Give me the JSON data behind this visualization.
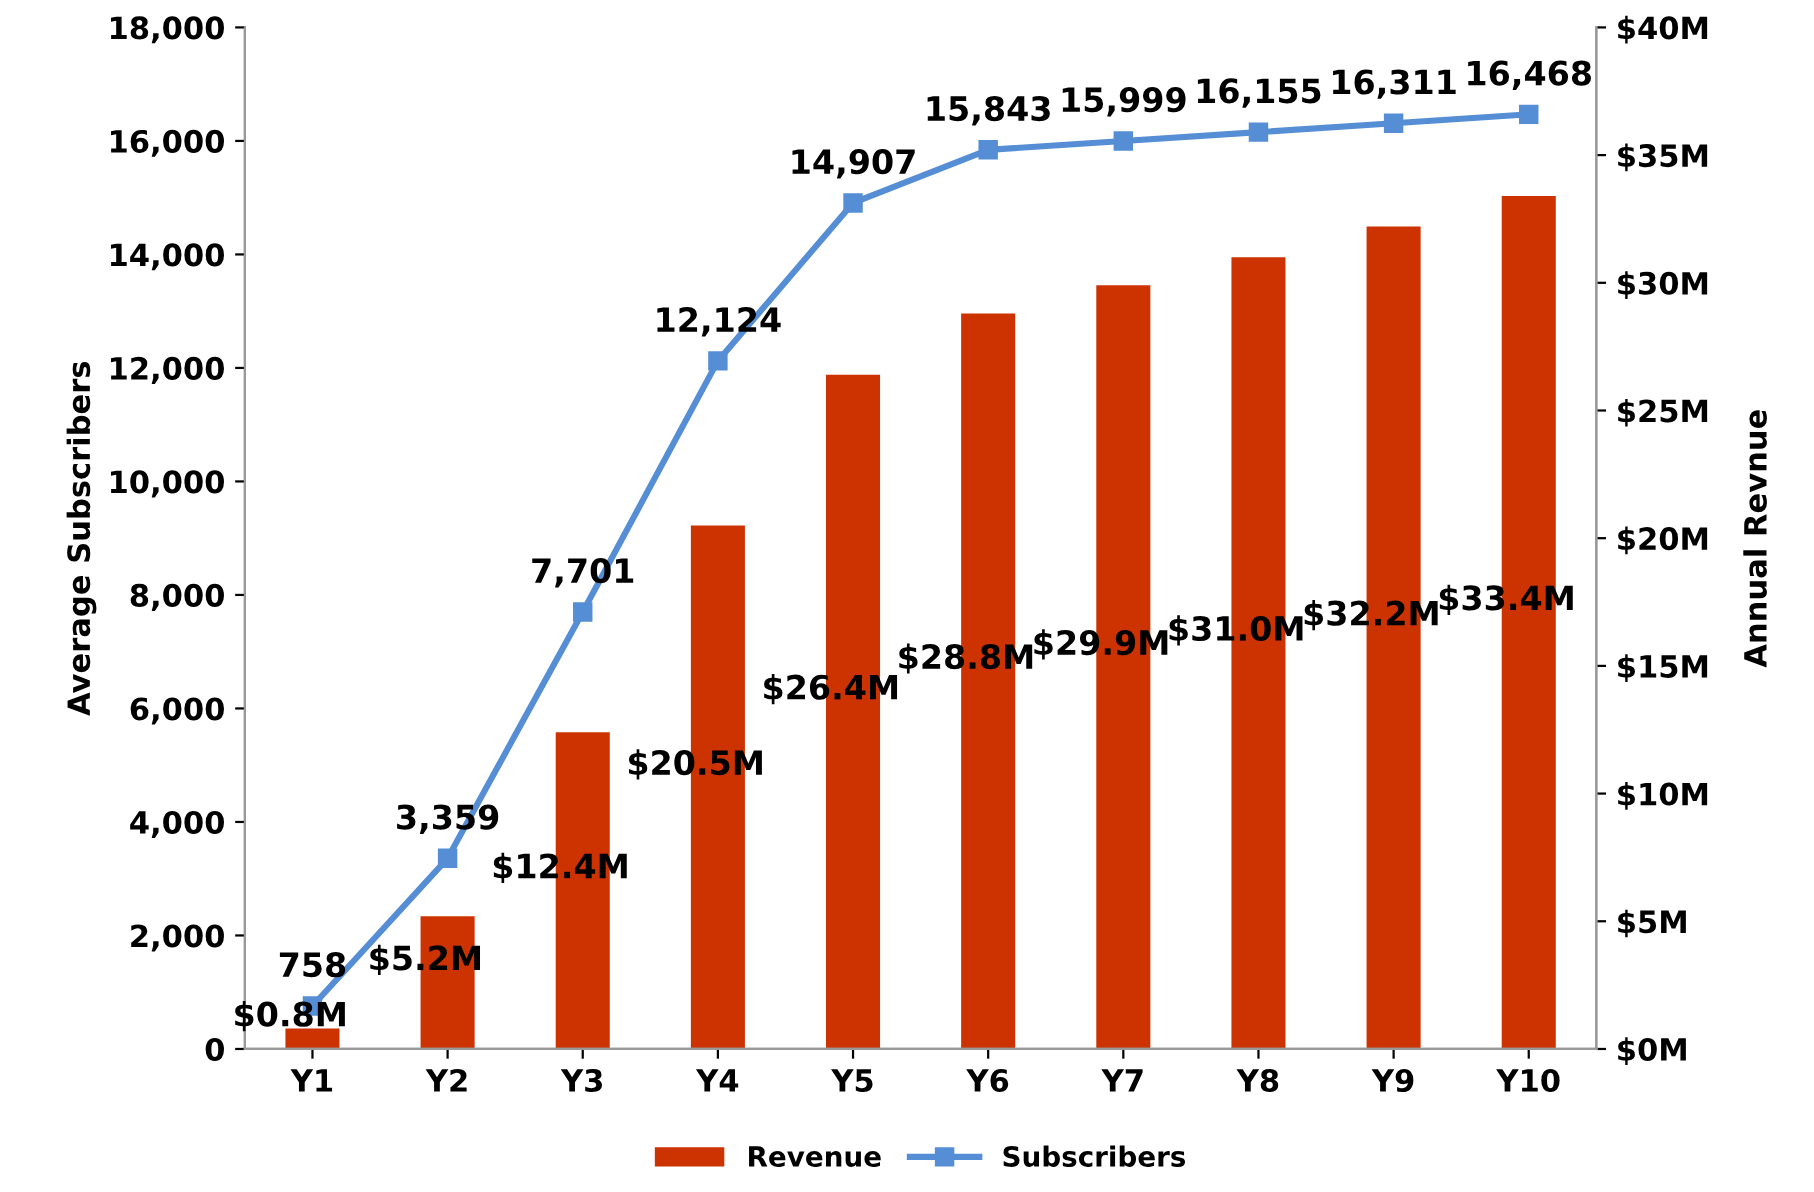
{
  "chart_data": {
    "type": "bar",
    "xlabel": null,
    "ylabel": "Average Subscribers",
    "y2label": "Annual Revnue",
    "categories": [
      "Y1",
      "Y2",
      "Y3",
      "Y4",
      "Y5",
      "Y6",
      "Y7",
      "Y8",
      "Y9",
      "Y10"
    ],
    "series": [
      {
        "name": "Revenue",
        "axis": "y2",
        "color": "#cc3300",
        "values": [
          0.8,
          5.2,
          12.4,
          20.5,
          26.4,
          28.8,
          29.9,
          31.0,
          32.2,
          33.4
        ],
        "value_labels": [
          "$0.8M",
          "$5.2M",
          "$12.4M",
          "$20.5M",
          "$26.4M",
          "$28.8M",
          "$29.9M",
          "$31.0M",
          "$32.2M",
          "$33.4M"
        ]
      },
      {
        "name": "Subscribers",
        "type": "line",
        "color": "#558ed5",
        "marker": "square",
        "values": [
          758,
          3359,
          7701,
          12124,
          14907,
          15843,
          15999,
          16155,
          16311,
          16468
        ],
        "value_labels": [
          "758",
          "3,359",
          "7,701",
          "12,124",
          "14,907",
          "15,843",
          "15,999",
          "16,155",
          "16,311",
          "16,468"
        ]
      }
    ],
    "ylim": [
      0,
      18000
    ],
    "yticks": [
      {
        "value": 0,
        "label": "0"
      },
      {
        "value": 2000,
        "label": "2,000"
      },
      {
        "value": 4000,
        "label": "4,000"
      },
      {
        "value": 6000,
        "label": "6,000"
      },
      {
        "value": 8000,
        "label": "8,000"
      },
      {
        "value": 10000,
        "label": "10,000"
      },
      {
        "value": 12000,
        "label": "12,000"
      },
      {
        "value": 14000,
        "label": "14,000"
      },
      {
        "value": 16000,
        "label": "16,000"
      },
      {
        "value": 18000,
        "label": "18,000"
      }
    ],
    "y2lim": [
      0,
      40
    ],
    "y2ticks": [
      {
        "value": 0,
        "label": "$0M"
      },
      {
        "value": 5,
        "label": "$5M"
      },
      {
        "value": 10,
        "label": "$10M"
      },
      {
        "value": 15,
        "label": "$15M"
      },
      {
        "value": 20,
        "label": "$20M"
      },
      {
        "value": 25,
        "label": "$25M"
      },
      {
        "value": 30,
        "label": "$30M"
      },
      {
        "value": 35,
        "label": "$35M"
      },
      {
        "value": 40,
        "label": "$40M"
      }
    ],
    "legend": "bottom"
  }
}
